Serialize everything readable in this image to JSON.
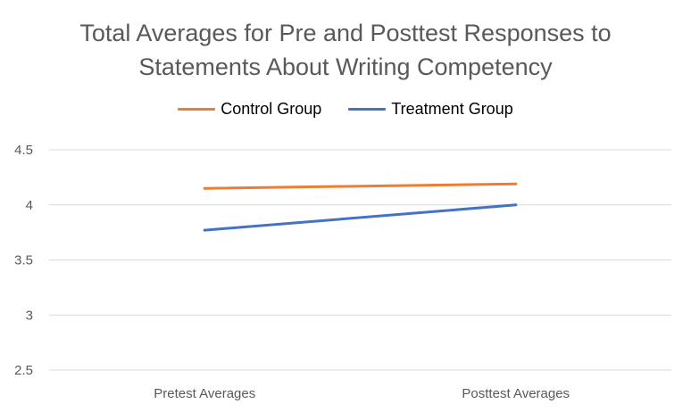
{
  "chart_data": {
    "type": "line",
    "title_lines": [
      "Total Averages for Pre and Posttest Responses to",
      "Statements About Writing Competency"
    ],
    "categories": [
      "Pretest Averages",
      "Posttest Averages"
    ],
    "series": [
      {
        "name": "Control Group",
        "values": [
          4.15,
          4.19
        ],
        "color": "#ED7D31"
      },
      {
        "name": "Treatment Group",
        "values": [
          3.77,
          4.0
        ],
        "color": "#4472C4"
      }
    ],
    "ylim": [
      2.5,
      4.5
    ],
    "yticks": [
      "4.5",
      "4",
      "3.5",
      "3",
      "2.5"
    ],
    "grid": true,
    "legend_position": "top",
    "gridline_color": "#D9D9D9"
  }
}
